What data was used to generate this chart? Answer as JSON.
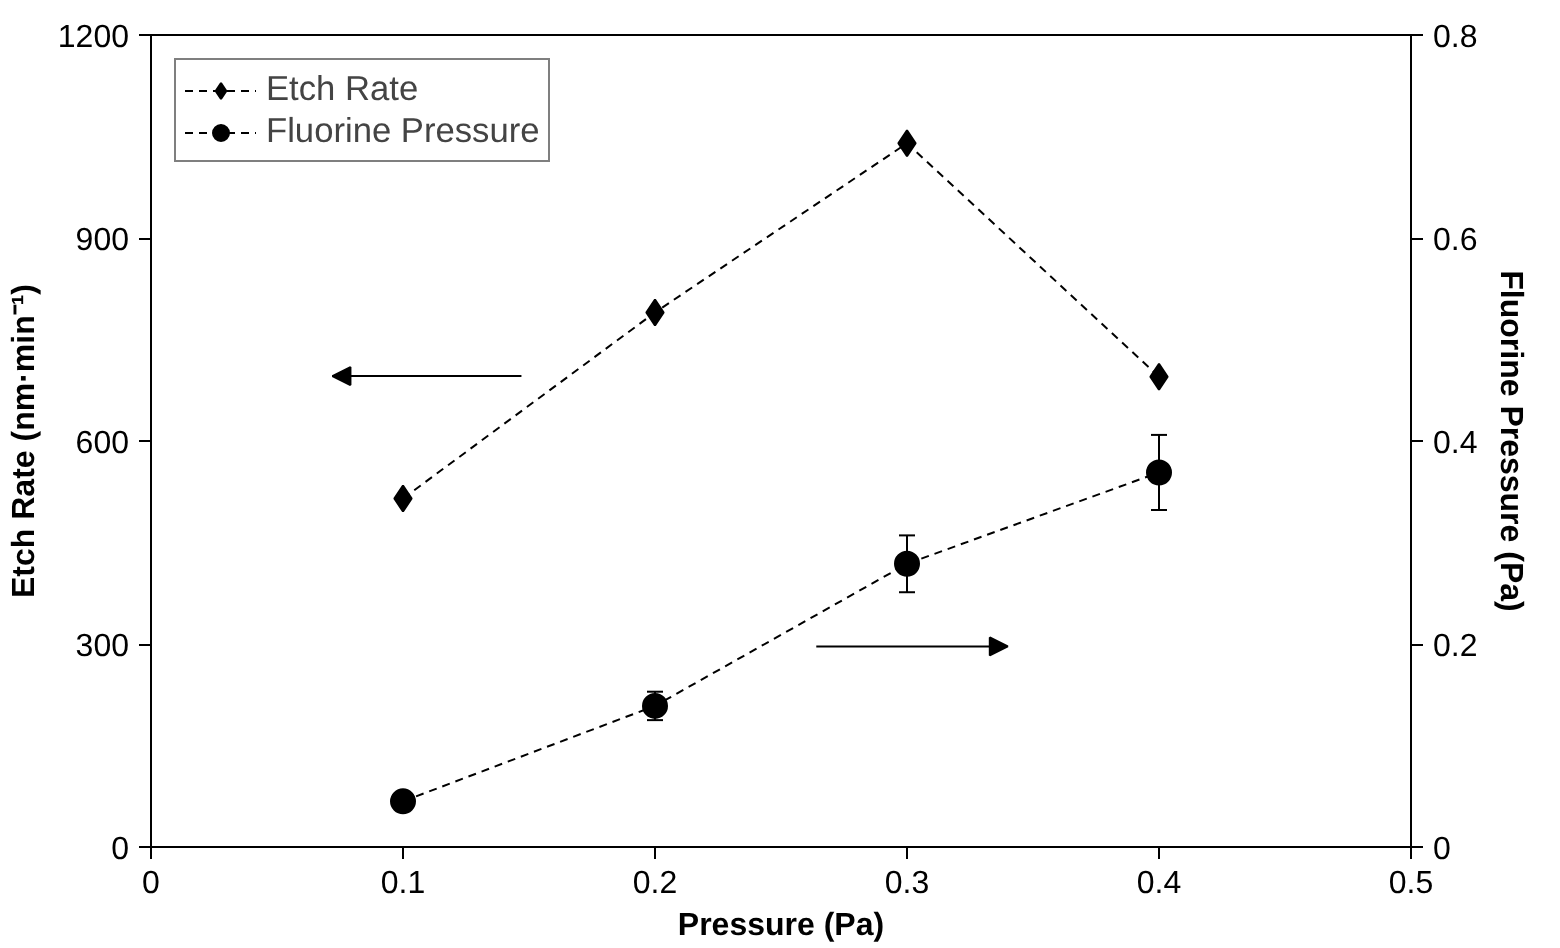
{
  "chart_data": {
    "type": "line",
    "xlabel": "Pressure (Pa)",
    "ylabel": "Etch Rate (nm·min⁻¹)",
    "y2label": "Fluorine Pressure (Pa)",
    "x": [
      0.1,
      0.2,
      0.3,
      0.4
    ],
    "xlim": [
      0,
      0.5
    ],
    "xticks": [
      0,
      0.1,
      0.2,
      0.3,
      0.4,
      0.5
    ],
    "ylim": [
      0,
      1200
    ],
    "yticks": [
      0,
      300,
      600,
      900,
      1200
    ],
    "y2lim": [
      0,
      0.8
    ],
    "y2ticks": [
      0,
      0.2,
      0.4,
      0.6,
      0.8
    ],
    "series": [
      {
        "name": "Etch Rate",
        "color": "#000000",
        "marker": "diamond",
        "values": [
          515,
          790,
          1040,
          695
        ]
      },
      {
        "name": "Fluorine Pressure",
        "color": "#000000",
        "marker": "circle",
        "axis": "y2",
        "values": [
          0.045,
          0.139,
          0.279,
          0.369
        ],
        "errors": [
          null,
          0.014,
          0.028,
          0.037
        ]
      }
    ],
    "line_style": "dashed",
    "grid": false,
    "legend": "top left"
  }
}
